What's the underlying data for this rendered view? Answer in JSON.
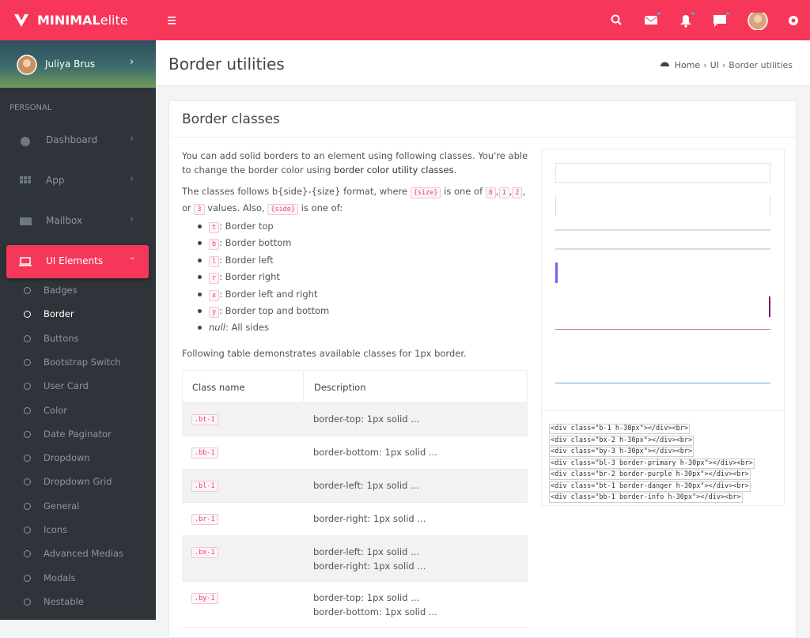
{
  "brand": {
    "bold": "MINIMAL",
    "light": "elite"
  },
  "user": {
    "name": "Juliya Brus"
  },
  "sidebar": {
    "section": "PERSONAL",
    "items": [
      "Dashboard",
      "App",
      "Mailbox",
      "UI Elements"
    ],
    "subitems": [
      "Badges",
      "Border",
      "Buttons",
      "Bootstrap Switch",
      "User Card",
      "Color",
      "Date Paginator",
      "Dropdown",
      "Dropdown Grid",
      "General",
      "Icons",
      "Advanced Medias",
      "Modals",
      "Nestable"
    ]
  },
  "page": {
    "title": "Border utilities",
    "breadcrumb": [
      "Home",
      "UI",
      "Border utilities"
    ]
  },
  "card": {
    "title": "Border classes",
    "para1": [
      {
        "text": "You can add solid borders to an element using following classes. You're able to change the border color using "
      },
      {
        "link": "border color utility classes"
      },
      {
        "text": "."
      }
    ],
    "para2": [
      {
        "text": "The classes follows b{side}-{size} format, where "
      },
      {
        "code": "{size}"
      },
      {
        "text": " is one of "
      },
      {
        "code": "0"
      },
      {
        "text": ","
      },
      {
        "code": "1"
      },
      {
        "text": ","
      },
      {
        "code": "2"
      },
      {
        "text": ", or "
      },
      {
        "code": "3"
      },
      {
        "text": " values. Also, "
      },
      {
        "code": "{side}"
      },
      {
        "text": " is one of:"
      }
    ],
    "list": [
      {
        "code": "t",
        "text": ": Border top"
      },
      {
        "code": "b",
        "text": ": Border bottom"
      },
      {
        "code": "l",
        "text": ": Border left"
      },
      {
        "code": "r",
        "text": ": Border right"
      },
      {
        "code": "x",
        "text": ": Border left and right"
      },
      {
        "code": "y",
        "text": ": Border top and bottom"
      },
      {
        "em": "null",
        "text": ": All sides"
      }
    ],
    "para3": "Following table demonstrates available classes for 1px border.",
    "table": {
      "headers": [
        "Class name",
        "Description"
      ],
      "rows": [
        [
          ".bt-1",
          [
            "border-top: 1px solid ..."
          ]
        ],
        [
          ".bb-1",
          [
            "border-bottom: 1px solid ..."
          ]
        ],
        [
          ".bl-1",
          [
            "border-left: 1px solid ..."
          ]
        ],
        [
          ".br-1",
          [
            "border-right: 1px solid ..."
          ]
        ],
        [
          ".bx-1",
          [
            "border-left: 1px solid ...",
            "border-right: 1px solid ..."
          ]
        ],
        [
          ".by-1",
          [
            "border-top: 1px solid ...",
            "border-bottom: 1px solid ..."
          ]
        ]
      ]
    },
    "code": [
      "<div class=\"b-1 h-30px\"></div><br>",
      "<div class=\"bx-2 h-30px\"></div><br>",
      "<div class=\"by-3 h-30px\"></div><br>",
      "<div class=\"bl-3 border-primary h-30px\"></div><br>",
      "<div class=\"br-2 border-purple h-30px\"></div><br>",
      "<div class=\"bt-1 border-danger h-30px\"></div><br>",
      "<div class=\"bb-1 border-info h-30px\"></div><br>"
    ]
  }
}
